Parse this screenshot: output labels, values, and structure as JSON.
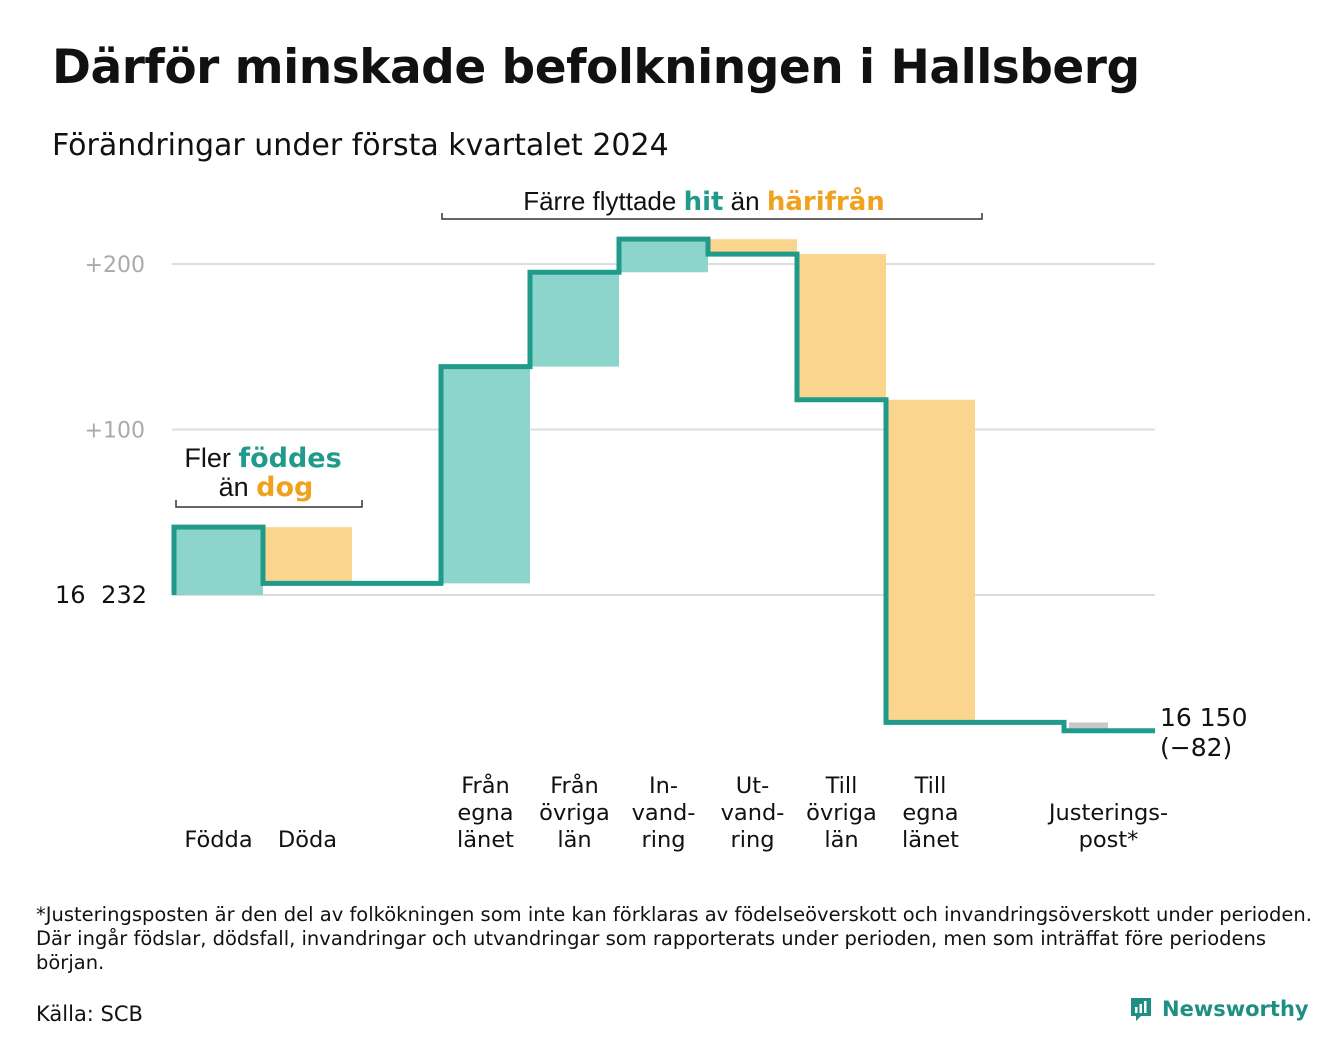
{
  "title": "Därför minskade befolkningen i Hallsberg",
  "subtitle": "Förändringar under första kvartalet 2024",
  "chart_data": {
    "type": "waterfall",
    "start_value": 16232,
    "start_label": "16 232",
    "end_label_line1": "16 150",
    "end_label_line2": "(−82)",
    "y_ticks": [
      {
        "value": 200,
        "label": "+200"
      },
      {
        "value": 100,
        "label": "+100"
      }
    ],
    "grid": true,
    "steps": [
      {
        "label_lines": [
          "Födda"
        ],
        "delta": 41,
        "kind": "in"
      },
      {
        "label_lines": [
          "Döda"
        ],
        "delta": -34,
        "kind": "out"
      },
      {
        "label_lines": [
          ""
        ],
        "delta": 0,
        "kind": "none"
      },
      {
        "label_lines": [
          "Från",
          "egna",
          "länet"
        ],
        "delta": 131,
        "kind": "in"
      },
      {
        "label_lines": [
          "Från",
          "övriga",
          "län"
        ],
        "delta": 57,
        "kind": "in"
      },
      {
        "label_lines": [
          "In-",
          "vand-",
          "ring"
        ],
        "delta": 20,
        "kind": "in"
      },
      {
        "label_lines": [
          "Ut-",
          "vand-",
          "ring"
        ],
        "delta": -9,
        "kind": "out"
      },
      {
        "label_lines": [
          "Till",
          "övriga",
          "län"
        ],
        "delta": -88,
        "kind": "out"
      },
      {
        "label_lines": [
          "Till",
          "egna",
          "länet"
        ],
        "delta": -195,
        "kind": "out"
      },
      {
        "label_lines": [
          ""
        ],
        "delta": 0,
        "kind": "none"
      },
      {
        "label_lines": [
          "Justerings-",
          "post*"
        ],
        "delta": -5,
        "kind": "adjust"
      }
    ],
    "annotations": {
      "births": {
        "line1_a": "Fler ",
        "line1_b": "föddes",
        "line2_a": "än ",
        "line2_b": "dog"
      },
      "moves": {
        "part_a": "Färre flyttade ",
        "part_b": "hit",
        "part_c": " än ",
        "part_d": "härifrån"
      }
    },
    "colors": {
      "line": "#1f9a8b",
      "in_fill": "#8dd5cc",
      "out_fill": "#fbd58e",
      "adjust_fill": "#c8c8c8",
      "in_text": "#1f9a8b",
      "out_text": "#f0a21f",
      "grid": "#dddddd",
      "tick_text": "#aaaaaa"
    }
  },
  "footnote": "*Justeringsposten är den del av folkökningen som inte kan förklaras av födelseöverskott och invandringsöverskott under perioden. Där ingår födslar, dödsfall, invandringar och utvandringar som rapporterats under perioden, men som inträffat före periodens början.",
  "source": "Källa: SCB",
  "brand": "Newsworthy"
}
